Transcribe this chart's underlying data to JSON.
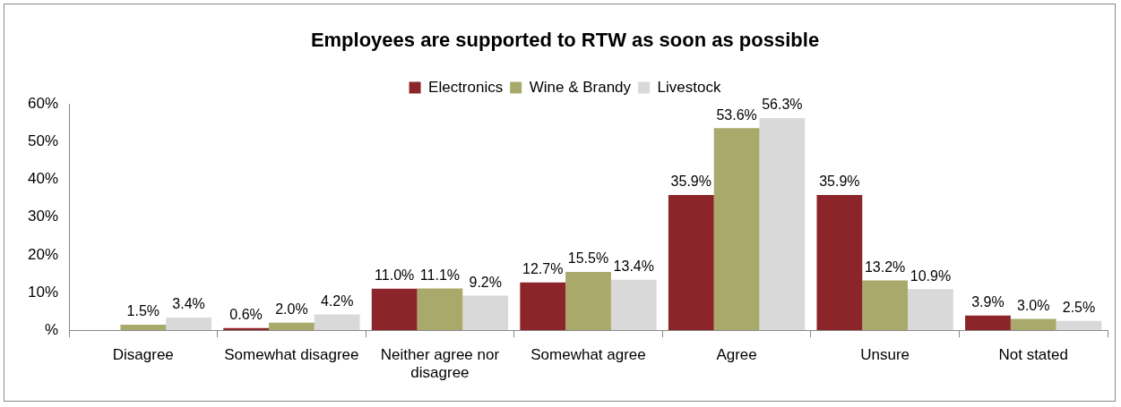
{
  "chart_data": {
    "type": "bar",
    "title": "Employees are supported to RTW as soon as possible",
    "categories": [
      "Disagree",
      "Somewhat disagree",
      "Neither agree nor disagree",
      "Somewhat agree",
      "Agree",
      "Unsure",
      "Not stated"
    ],
    "series": [
      {
        "name": "Electronics",
        "color": "#8b2529",
        "values": [
          0,
          0.6,
          11.0,
          12.7,
          35.9,
          35.9,
          3.9
        ],
        "value_labels": [
          null,
          "0.6%",
          "11.0%",
          "12.7%",
          "35.9%",
          "35.9%",
          "3.9%"
        ]
      },
      {
        "name": "Wine & Brandy",
        "color": "#a9a96b",
        "values": [
          1.5,
          2.0,
          11.1,
          15.5,
          53.6,
          13.2,
          3.0
        ],
        "value_labels": [
          "1.5%",
          "2.0%",
          "11.1%",
          "15.5%",
          "53.6%",
          "13.2%",
          "3.0%"
        ]
      },
      {
        "name": "Livestock",
        "color": "#d9d9d9",
        "values": [
          3.4,
          4.2,
          9.2,
          13.4,
          56.3,
          10.9,
          2.5
        ],
        "value_labels": [
          "3.4%",
          "4.2%",
          "9.2%",
          "13.4%",
          "56.3%",
          "10.9%",
          "2.5%"
        ]
      }
    ],
    "ylim": [
      0,
      60
    ],
    "yticks": [
      {
        "value": 0,
        "label": "%"
      },
      {
        "value": 10,
        "label": "10%"
      },
      {
        "value": 20,
        "label": "20%"
      },
      {
        "value": 30,
        "label": "30%"
      },
      {
        "value": 40,
        "label": "40%"
      },
      {
        "value": 50,
        "label": "50%"
      },
      {
        "value": 60,
        "label": "60%"
      }
    ],
    "grid": false,
    "legend": "top"
  }
}
